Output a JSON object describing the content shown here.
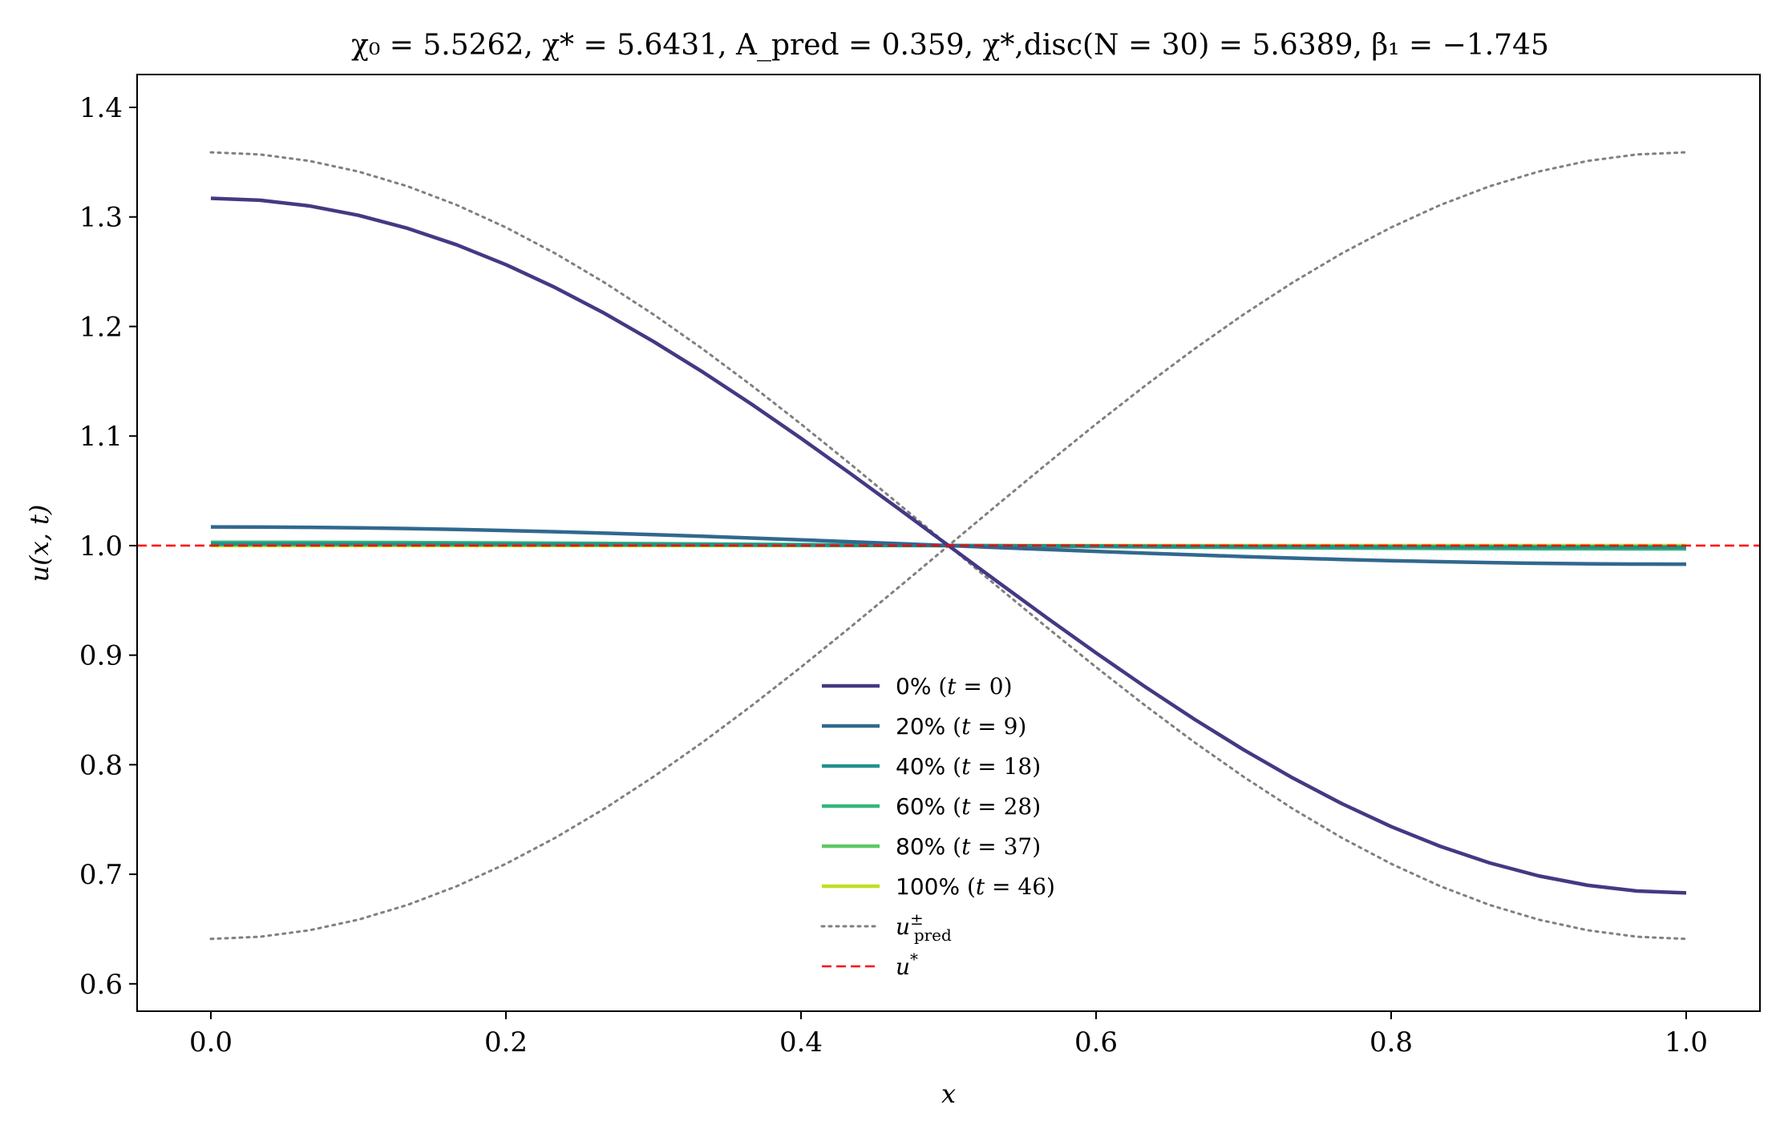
{
  "chart_data": {
    "type": "line",
    "title": "χ₀ = 5.5262,  χ* = 5.6431,  A_pred = 0.359,  χ*,disc(N = 30) = 5.6389,  β₁ = −1.745",
    "xlabel": "x",
    "ylabel": "u(x, t)",
    "xlim": [
      -0.05,
      1.05
    ],
    "ylim": [
      0.575,
      1.43
    ],
    "xticks": [
      "0.0",
      "0.2",
      "0.4",
      "0.6",
      "0.8",
      "1.0"
    ],
    "yticks": [
      "0.6",
      "0.7",
      "0.8",
      "0.9",
      "1.0",
      "1.1",
      "1.2",
      "1.3",
      "1.4"
    ],
    "grid": false,
    "legend_position": "lower-center",
    "series": [
      {
        "name": "0% (t = 0)",
        "color": "#443983",
        "style": "solid",
        "amplitude": 0.317,
        "x": [
          0.0,
          1.0
        ],
        "y_at_endpoints": [
          1.317,
          0.683
        ]
      },
      {
        "name": "20% (t = 9)",
        "color": "#31688e",
        "style": "solid",
        "amplitude": 0.017,
        "y_at_endpoints": [
          1.017,
          0.983
        ]
      },
      {
        "name": "40% (t = 18)",
        "color": "#21918c",
        "style": "solid",
        "amplitude": 0.0015,
        "y_at_endpoints": [
          1.0015,
          0.9985
        ]
      },
      {
        "name": "60% (t = 28)",
        "color": "#35b779",
        "style": "solid",
        "amplitude": 0.003,
        "y_at_endpoints": [
          1.003,
          0.997
        ]
      },
      {
        "name": "80% (t = 37)",
        "color": "#5ec962",
        "style": "solid",
        "amplitude": 0.001,
        "y_at_endpoints": [
          1.001,
          0.999
        ]
      },
      {
        "name": "100% (t = 46)",
        "color": "#c2df23",
        "style": "solid",
        "amplitude": 0.0,
        "y_at_endpoints": [
          1.0,
          1.0
        ]
      },
      {
        "name": "u±pred",
        "color": "#808080",
        "style": "dotted",
        "amplitude": 0.359,
        "y_at_endpoints_plus": [
          1.359,
          0.641
        ],
        "y_at_endpoints_minus": [
          0.641,
          1.359
        ]
      },
      {
        "name": "u*",
        "color": "#ff0000",
        "style": "dashed",
        "value": 1.0
      }
    ]
  }
}
